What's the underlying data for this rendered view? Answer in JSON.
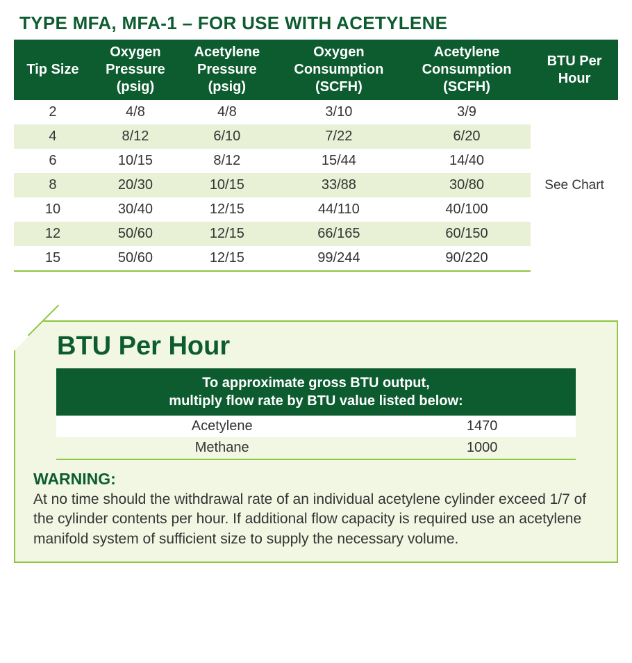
{
  "title": "TYPE MFA, MFA-1 – FOR USE WITH ACETYLENE",
  "main_table": {
    "columns": [
      "Tip Size",
      "Oxygen Pressure (psig)",
      "Acetylene Pressure (psig)",
      "Oxygen Consumption (SCFH)",
      "Acetylene Consumption (SCFH)",
      "BTU Per Hour"
    ],
    "col_html": {
      "0": "Tip Size",
      "1": "Oxygen<br>Pressure<br>(psig)",
      "2": "Acetylene<br>Pressure<br>(psig)",
      "3": "Oxygen<br>Consumption<br>(SCFH)",
      "4": "Acetylene<br>Consumption<br>(SCFH)",
      "5": "BTU Per<br>Hour"
    },
    "rows": [
      [
        "2",
        "4/8",
        "4/8",
        "3/10",
        "3/9"
      ],
      [
        "4",
        "8/12",
        "6/10",
        "7/22",
        "6/20"
      ],
      [
        "6",
        "10/15",
        "8/12",
        "15/44",
        "14/40"
      ],
      [
        "8",
        "20/30",
        "10/15",
        "33/88",
        "30/80"
      ],
      [
        "10",
        "30/40",
        "12/15",
        "44/110",
        "40/100"
      ],
      [
        "12",
        "50/60",
        "12/15",
        "66/165",
        "60/150"
      ],
      [
        "15",
        "50/60",
        "12/15",
        "99/244",
        "90/220"
      ]
    ],
    "note": "See Chart",
    "colors": {
      "header_bg": "#0d5c30",
      "header_fg": "#ffffff",
      "row_alt_bg": "#e8f0d6",
      "bottom_border": "#8ec63f"
    }
  },
  "btu_box": {
    "title": "BTU Per Hour",
    "table_header_line1": "To approximate gross BTU output,",
    "table_header_line2": "multiply flow rate by BTU value listed below:",
    "rows": [
      [
        "Acetylene",
        "1470"
      ],
      [
        "Methane",
        "1000"
      ]
    ],
    "warning_label": "WARNING:",
    "warning_text": "At no time should the withdrawal rate of an individual acetylene cylinder exceed 1/7 of the cylinder contents per hour. If additional flow capacity is required use an acetylene manifold system of sufficient size to supply the necessary volume.",
    "colors": {
      "box_bg": "#f2f7e3",
      "box_border": "#8ec63f",
      "title_color": "#0d5c30"
    }
  }
}
